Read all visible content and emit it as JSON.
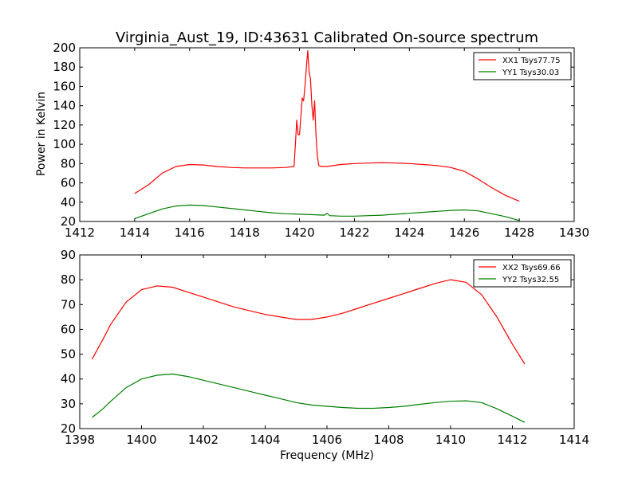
{
  "figure": {
    "title": "Virginia_Aust_19, ID:43631 Calibrated On-source spectrum",
    "ylabel": "Power in Kelvin",
    "xlabel": "Frequency (MHz)"
  },
  "chart_data": [
    {
      "type": "line",
      "title": "Virginia_Aust_19, ID:43631 Calibrated On-source spectrum",
      "xlabel": "",
      "ylabel": "Power in Kelvin",
      "xlim": [
        1412,
        1430
      ],
      "ylim": [
        20,
        200
      ],
      "xticks": [
        1412,
        1414,
        1416,
        1418,
        1420,
        1422,
        1424,
        1426,
        1428,
        1430
      ],
      "yticks": [
        20,
        40,
        60,
        80,
        100,
        120,
        140,
        160,
        180,
        200
      ],
      "grid": false,
      "legend_position": "top-right",
      "series": [
        {
          "name": "XX1 Tsys77.75",
          "color": "#ff0000",
          "x": [
            1414.0,
            1414.5,
            1415.0,
            1415.5,
            1416.0,
            1416.5,
            1417.0,
            1417.5,
            1418.0,
            1418.5,
            1419.0,
            1419.5,
            1419.8,
            1419.85,
            1419.9,
            1419.95,
            1420.0,
            1420.05,
            1420.1,
            1420.15,
            1420.2,
            1420.25,
            1420.3,
            1420.35,
            1420.4,
            1420.45,
            1420.5,
            1420.55,
            1420.6,
            1420.65,
            1420.7,
            1420.8,
            1421.0,
            1421.5,
            1422.0,
            1422.5,
            1423.0,
            1423.5,
            1424.0,
            1424.5,
            1425.0,
            1425.5,
            1426.0,
            1426.5,
            1427.0,
            1427.5,
            1428.0
          ],
          "y": [
            49,
            58,
            70,
            77,
            79,
            78.5,
            77,
            76,
            75.5,
            75.5,
            75.5,
            76,
            77,
            100,
            125,
            110,
            110,
            130,
            148,
            145,
            160,
            180,
            197,
            175,
            168,
            140,
            125,
            145,
            110,
            88,
            78,
            77,
            77,
            79,
            80,
            80.5,
            81,
            80.5,
            80,
            79,
            78,
            76,
            72,
            64,
            55,
            47,
            41
          ]
        },
        {
          "name": "YY1 Tsys30.03",
          "color": "#008000",
          "x": [
            1414.0,
            1414.5,
            1415.0,
            1415.5,
            1416.0,
            1416.5,
            1417.0,
            1417.5,
            1418.0,
            1418.5,
            1419.0,
            1419.5,
            1420.0,
            1420.5,
            1420.9,
            1421.0,
            1421.1,
            1421.5,
            1422.0,
            1422.5,
            1423.0,
            1423.5,
            1424.0,
            1424.5,
            1425.0,
            1425.5,
            1426.0,
            1426.5,
            1427.0,
            1427.5,
            1428.0
          ],
          "y": [
            23,
            28,
            33,
            36,
            37,
            36.5,
            35,
            33.5,
            32,
            30.5,
            29,
            28,
            27.5,
            27,
            26.5,
            28.5,
            26,
            25.5,
            25.5,
            26,
            26.5,
            27.5,
            28.5,
            29.5,
            30.5,
            31.5,
            32,
            31,
            28,
            25,
            21
          ]
        }
      ]
    },
    {
      "type": "line",
      "title": "",
      "xlabel": "Frequency (MHz)",
      "ylabel": "",
      "xlim": [
        1398,
        1414
      ],
      "ylim": [
        20,
        90
      ],
      "xticks": [
        1398,
        1400,
        1402,
        1404,
        1406,
        1408,
        1410,
        1412,
        1414
      ],
      "yticks": [
        20,
        30,
        40,
        50,
        60,
        70,
        80,
        90
      ],
      "grid": false,
      "legend_position": "top-right",
      "series": [
        {
          "name": "XX2 Tsys69.66",
          "color": "#ff0000",
          "x": [
            1398.4,
            1398.75,
            1399.0,
            1399.5,
            1400.0,
            1400.5,
            1401.0,
            1401.5,
            1402.0,
            1402.5,
            1403.0,
            1403.5,
            1404.0,
            1404.5,
            1405.0,
            1405.5,
            1406.0,
            1406.5,
            1407.0,
            1407.5,
            1408.0,
            1408.5,
            1409.0,
            1409.5,
            1410.0,
            1410.5,
            1411.0,
            1411.5,
            1412.0,
            1412.4
          ],
          "y": [
            48,
            56,
            62,
            71,
            76,
            77.5,
            77,
            75,
            73,
            71,
            69,
            67.5,
            66,
            65,
            64,
            64,
            65,
            66.5,
            68.5,
            70.5,
            72.5,
            74.5,
            76.5,
            78.5,
            80,
            79,
            74,
            65,
            54,
            46
          ]
        },
        {
          "name": "YY2 Tsys32.55",
          "color": "#008000",
          "x": [
            1398.4,
            1398.75,
            1399.0,
            1399.5,
            1400.0,
            1400.5,
            1401.0,
            1401.5,
            1402.0,
            1402.5,
            1403.0,
            1403.5,
            1404.0,
            1404.5,
            1405.0,
            1405.5,
            1406.0,
            1406.5,
            1407.0,
            1407.5,
            1408.0,
            1408.5,
            1409.0,
            1409.5,
            1410.0,
            1410.5,
            1411.0,
            1411.5,
            1412.0,
            1412.4
          ],
          "y": [
            24.5,
            28,
            31,
            36.5,
            40,
            41.5,
            42,
            41,
            39.5,
            38,
            36.5,
            35,
            33.5,
            32,
            30.5,
            29.5,
            29,
            28.5,
            28.2,
            28.2,
            28.5,
            29,
            29.8,
            30.5,
            31,
            31.2,
            30.5,
            28,
            25,
            22.5
          ]
        }
      ]
    }
  ]
}
